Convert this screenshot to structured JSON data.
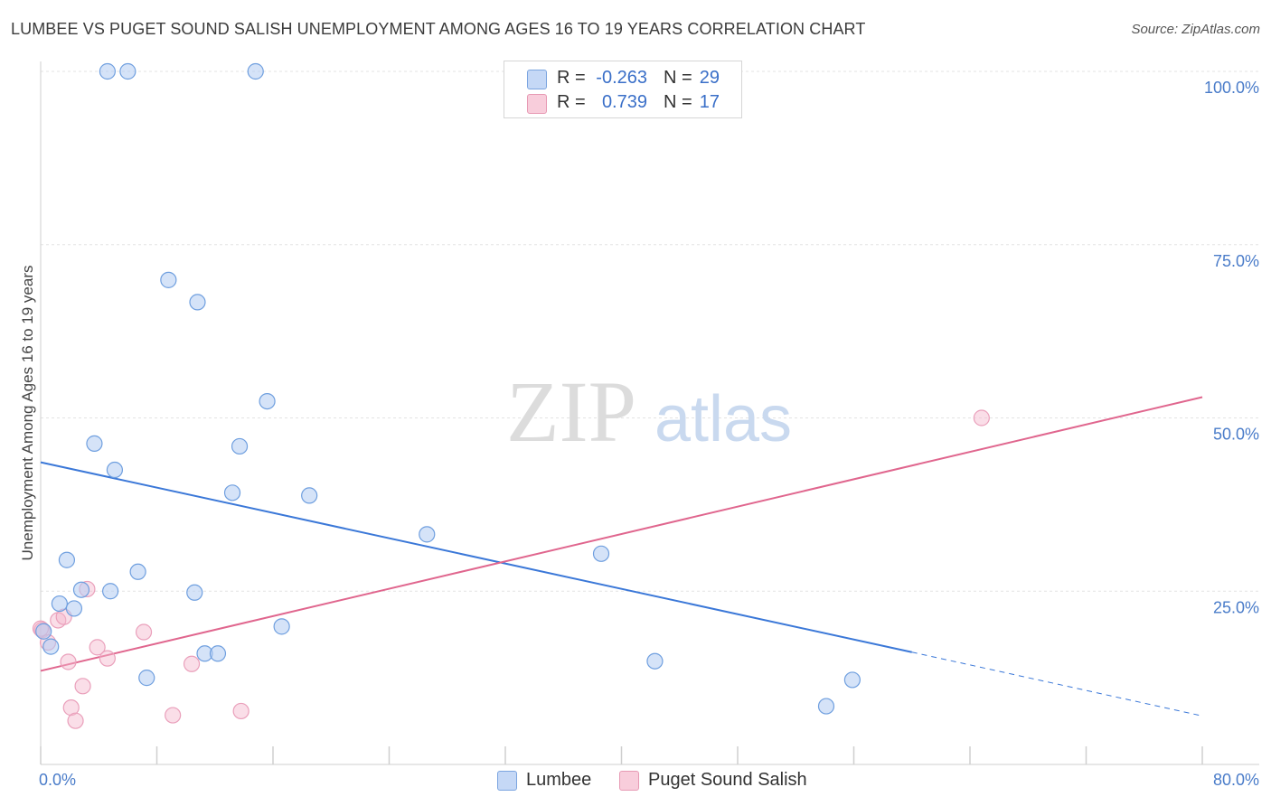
{
  "header": {
    "title": "LUMBEE VS PUGET SOUND SALISH UNEMPLOYMENT AMONG AGES 16 TO 19 YEARS CORRELATION CHART",
    "source": "Source: ZipAtlas.com"
  },
  "watermark": {
    "zip": "ZIP",
    "atlas": "atlas"
  },
  "legend": {
    "r_label": "R =",
    "n_label": "N =",
    "lumbee": {
      "r": "-0.263",
      "n": "29"
    },
    "salish": {
      "r": "0.739",
      "n": "17"
    }
  },
  "chart_data": {
    "type": "scatter",
    "title": "LUMBEE VS PUGET SOUND SALISH UNEMPLOYMENT AMONG AGES 16 TO 19 YEARS CORRELATION CHART",
    "xlabel": "",
    "ylabel": "Unemployment Among Ages 16 to 19 years",
    "xlim": [
      0,
      80
    ],
    "ylim": [
      0,
      100
    ],
    "x_tick_labels": [
      {
        "value": 0,
        "label": "0.0%"
      },
      {
        "value": 80,
        "label": "80.0%"
      }
    ],
    "y_tick_labels": [
      {
        "value": 25,
        "label": "25.0%"
      },
      {
        "value": 50,
        "label": "50.0%"
      },
      {
        "value": 75,
        "label": "75.0%"
      },
      {
        "value": 100,
        "label": "100.0%"
      }
    ],
    "colors": {
      "lumbee": "#3b78d8",
      "salish": "#e0668e",
      "tick_label": "#4a7cc9"
    },
    "series": [
      {
        "name": "Lumbee",
        "r": -0.263,
        "n": 29,
        "points": [
          [
            0.2,
            19.2
          ],
          [
            0.7,
            17.0
          ],
          [
            1.3,
            23.2
          ],
          [
            1.8,
            29.5
          ],
          [
            2.3,
            22.5
          ],
          [
            2.8,
            25.2
          ],
          [
            3.7,
            46.3
          ],
          [
            4.6,
            100
          ],
          [
            4.8,
            25.0
          ],
          [
            5.1,
            42.5
          ],
          [
            6.0,
            100
          ],
          [
            6.7,
            27.8
          ],
          [
            7.3,
            12.5
          ],
          [
            8.8,
            69.9
          ],
          [
            10.6,
            24.8
          ],
          [
            10.8,
            66.7
          ],
          [
            11.3,
            16.0
          ],
          [
            12.2,
            16.0
          ],
          [
            13.2,
            39.2
          ],
          [
            13.7,
            45.9
          ],
          [
            14.8,
            100
          ],
          [
            15.6,
            52.4
          ],
          [
            16.6,
            19.9
          ],
          [
            18.5,
            38.8
          ],
          [
            26.6,
            33.2
          ],
          [
            38.6,
            30.4
          ],
          [
            42.3,
            14.9
          ],
          [
            54.1,
            8.4
          ],
          [
            55.9,
            12.2
          ]
        ],
        "trend": {
          "x": [
            0,
            60
          ],
          "y": [
            43.6,
            16.2
          ],
          "dashed_to": {
            "x": 80,
            "y": 7.0
          }
        }
      },
      {
        "name": "Puget Sound Salish",
        "r": 0.739,
        "n": 17,
        "points": [
          [
            0.1,
            19.4
          ],
          [
            0.5,
            17.6
          ],
          [
            1.2,
            20.8
          ],
          [
            1.6,
            21.3
          ],
          [
            1.9,
            14.8
          ],
          [
            2.1,
            8.2
          ],
          [
            2.4,
            6.3
          ],
          [
            2.9,
            11.3
          ],
          [
            3.2,
            25.3
          ],
          [
            3.9,
            16.9
          ],
          [
            4.6,
            15.3
          ],
          [
            7.1,
            19.1
          ],
          [
            9.1,
            7.1
          ],
          [
            10.4,
            14.5
          ],
          [
            13.8,
            7.7
          ],
          [
            64.8,
            50.0
          ],
          [
            0.0,
            19.6
          ]
        ],
        "trend": {
          "x": [
            0,
            80
          ],
          "y": [
            13.5,
            53.0
          ]
        }
      }
    ]
  }
}
